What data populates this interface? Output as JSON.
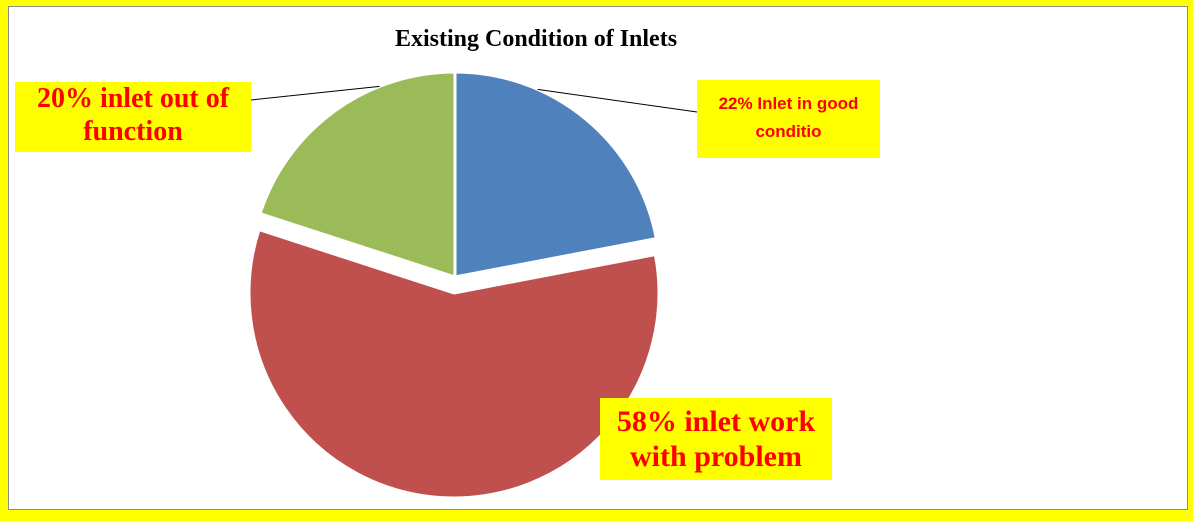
{
  "chart_data": {
    "type": "pie",
    "title": "Existing Condition of Inlets",
    "values": [
      22,
      58,
      20
    ],
    "value_labels": [
      "22% Inlet in good conditio",
      "58% inlet work with problem",
      "20% inlet out of function"
    ],
    "colors": [
      "#4f81bd",
      "#c0504d",
      "#9bbb59"
    ],
    "start_angle": 0,
    "direction": "clockwise",
    "exploded": [
      false,
      true,
      false
    ]
  }
}
